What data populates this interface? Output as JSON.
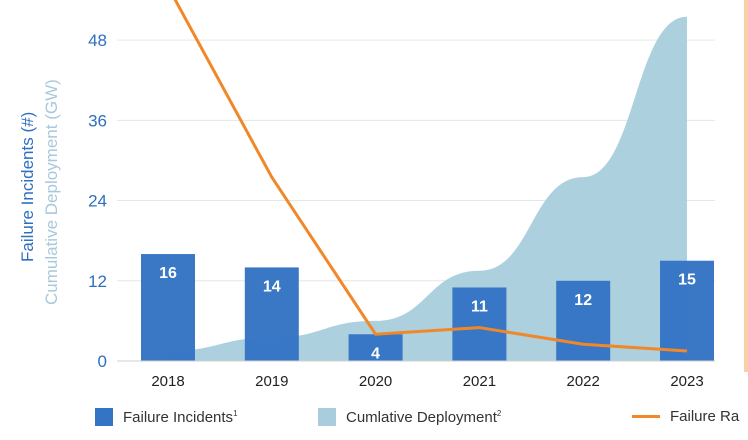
{
  "chart_data": {
    "type": "bar",
    "categories": [
      "2018",
      "2019",
      "2020",
      "2021",
      "2022",
      "2023"
    ],
    "yticks": [
      0,
      12,
      24,
      36,
      48
    ],
    "ylim": [
      0,
      54
    ],
    "ylabel": "Failure Incidents (#)",
    "ylabel2": "Cumulative Deployment (GW)",
    "grid": true,
    "legend_position": "bottom",
    "series": [
      {
        "name": "Failure Incidents",
        "type": "bar",
        "color": "#3474c4",
        "label_color": "#ffffff",
        "values": [
          16,
          14,
          4,
          11,
          12,
          15
        ]
      },
      {
        "name": "Cumlative Deployment",
        "type": "area",
        "color": "#a9cddc",
        "values": [
          1.5,
          3.5,
          6,
          13.5,
          27.5,
          51.5
        ]
      },
      {
        "name": "Failure Ra",
        "type": "line",
        "color": "#f0882a",
        "values": [
          56,
          27.5,
          4,
          5,
          2.5,
          1.5
        ]
      }
    ]
  },
  "legend": {
    "items": [
      {
        "label": "Failure Incidents",
        "sup": "1"
      },
      {
        "label": "Cumlative Deployment",
        "sup": "2"
      },
      {
        "label": "Failure Ra",
        "sup": ""
      }
    ]
  }
}
